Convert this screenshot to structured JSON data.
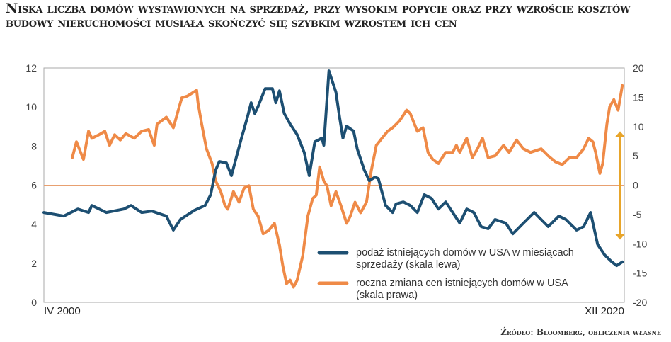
{
  "title": "Niska liczba domów wystawionych na sprzedaż, przy wysokim popycie oraz przy wzroście kosztów budowy nieruchomości musiała skończyć się szybkim wzrostem ich cen",
  "source": "Źródło: Bloomberg, obliczenia własne",
  "chart_data": {
    "type": "line",
    "title": "Niska liczba domów wystawionych na sprzedaż, przy wysokim popycie oraz przy wzroście kosztów budowy nieruchomości musiała skończyć się szybkim wzrostem ich cen",
    "x_range": [
      2000.25,
      2020.92
    ],
    "x_labels": [
      "IV 2000",
      "XII 2020"
    ],
    "left_axis": {
      "range": [
        0,
        12
      ],
      "ticks": [
        "0",
        "2",
        "4",
        "6",
        "8",
        "10",
        "12"
      ]
    },
    "right_axis": {
      "range": [
        -20,
        20
      ],
      "ticks": [
        "-20",
        "-15",
        "-10",
        "-5",
        "0",
        "5",
        "10",
        "15",
        "20"
      ]
    },
    "reference_line": {
      "left": 6,
      "right": 0
    },
    "annotation_arrow": {
      "axis": "right",
      "from": 9.2,
      "to": -9.3,
      "color": "#e8a52a"
    },
    "series": [
      {
        "name": "podaż istniejących domów w USA w miesiącach sprzedaży (skala lewa)",
        "legend_lines": [
          "podaż istniejących domów w USA w miesiącach",
          "sprzedaży (skala lewa)"
        ],
        "axis": "left",
        "color": "#1d4f72",
        "x": [
          2000.25,
          2000.96,
          2001.46,
          2001.84,
          2001.96,
          2002.47,
          2003.1,
          2003.35,
          2003.73,
          2004.1,
          2004.61,
          2004.86,
          2005.11,
          2005.61,
          2005.99,
          2006.19,
          2006.37,
          2006.5,
          2006.75,
          2006.93,
          2007.25,
          2007.5,
          2007.63,
          2007.76,
          2007.88,
          2008.13,
          2008.39,
          2008.51,
          2008.64,
          2008.81,
          2009.02,
          2009.27,
          2009.52,
          2009.7,
          2009.9,
          2010.15,
          2010.22,
          2010.4,
          2010.65,
          2010.78,
          2010.9,
          2011.03,
          2011.28,
          2011.41,
          2011.66,
          2011.84,
          2012.04,
          2012.16,
          2012.42,
          2012.67,
          2012.79,
          2013.05,
          2013.3,
          2013.55,
          2013.8,
          2014.05,
          2014.3,
          2014.56,
          2014.81,
          2015.06,
          2015.31,
          2015.56,
          2015.82,
          2016.07,
          2016.32,
          2016.7,
          2016.95,
          2017.33,
          2017.71,
          2017.96,
          2018.21,
          2018.59,
          2018.84,
          2019.22,
          2019.47,
          2019.72,
          2019.97,
          2020.22,
          2020.48,
          2020.65,
          2020.85
        ],
        "values": [
          4.6,
          4.42,
          4.78,
          4.6,
          4.96,
          4.6,
          4.78,
          4.96,
          4.6,
          4.67,
          4.42,
          3.7,
          4.24,
          4.71,
          4.96,
          5.51,
          6.78,
          7.21,
          7.14,
          6.49,
          8.22,
          9.49,
          10.22,
          9.67,
          10.04,
          10.94,
          10.94,
          10.22,
          10.83,
          9.67,
          9.13,
          8.59,
          7.68,
          6.49,
          8.22,
          8.41,
          8.04,
          11.85,
          10.76,
          9.49,
          8.41,
          9.02,
          8.77,
          7.86,
          6.78,
          6.23,
          6.41,
          6.34,
          4.96,
          4.6,
          5.04,
          5.14,
          4.96,
          4.6,
          5.51,
          5.33,
          4.78,
          5.14,
          4.6,
          4.06,
          4.78,
          4.6,
          3.88,
          3.77,
          4.24,
          4.06,
          3.51,
          4.06,
          4.6,
          4.24,
          3.88,
          4.42,
          4.24,
          3.7,
          3.88,
          4.6,
          2.97,
          2.43,
          2.07,
          1.88,
          2.07
        ]
      },
      {
        "name": "roczna zmiana cen istniejących domów w USA (skala prawa)",
        "legend_lines": [
          "roczna zmiana cen istniejących domów w USA",
          "(skala prawa)"
        ],
        "axis": "right",
        "color": "#ef8a47",
        "x": [
          2001.26,
          2001.41,
          2001.51,
          2001.66,
          2001.84,
          2001.96,
          2002.21,
          2002.42,
          2002.59,
          2002.77,
          2002.97,
          2003.17,
          2003.47,
          2003.73,
          2003.98,
          2004.18,
          2004.28,
          2004.61,
          2004.86,
          2005.16,
          2005.36,
          2005.69,
          2005.74,
          2005.87,
          2006.04,
          2006.24,
          2006.37,
          2006.55,
          2006.7,
          2006.8,
          2007.0,
          2007.2,
          2007.38,
          2007.55,
          2007.71,
          2007.88,
          2008.06,
          2008.26,
          2008.46,
          2008.64,
          2008.76,
          2008.89,
          2009.02,
          2009.14,
          2009.27,
          2009.47,
          2009.65,
          2009.82,
          2009.95,
          2010.07,
          2010.22,
          2010.33,
          2010.48,
          2010.65,
          2010.83,
          2011.03,
          2011.16,
          2011.33,
          2011.53,
          2011.74,
          2011.91,
          2012.09,
          2012.29,
          2012.49,
          2012.67,
          2012.92,
          2013.17,
          2013.3,
          2013.55,
          2013.75,
          2013.93,
          2014.1,
          2014.3,
          2014.56,
          2014.81,
          2014.94,
          2015.06,
          2015.31,
          2015.51,
          2015.69,
          2015.87,
          2016.07,
          2016.32,
          2016.62,
          2016.82,
          2017.08,
          2017.33,
          2017.58,
          2017.96,
          2018.21,
          2018.46,
          2018.71,
          2018.97,
          2019.22,
          2019.47,
          2019.65,
          2019.8,
          2019.9,
          2020.05,
          2020.15,
          2020.3,
          2020.4,
          2020.55,
          2020.7,
          2020.85
        ],
        "values": [
          4.7,
          7.4,
          6.2,
          4.4,
          9.2,
          8.0,
          8.6,
          9.2,
          6.8,
          8.6,
          7.7,
          8.8,
          8.0,
          9.2,
          9.5,
          6.8,
          10.4,
          11.6,
          9.8,
          14.9,
          15.2,
          16.2,
          14.0,
          10.4,
          6.2,
          3.7,
          0.7,
          -1.1,
          -3.5,
          -4.1,
          -1.1,
          -2.9,
          -0.5,
          -0.1,
          -4.1,
          -5.3,
          -8.3,
          -7.7,
          -6.5,
          -10.2,
          -13.8,
          -16.8,
          -16.2,
          -17.4,
          -16.2,
          -12.0,
          -5.3,
          -2.3,
          -1.7,
          3.1,
          0.7,
          -0.1,
          -3.5,
          -1.1,
          -3.5,
          -6.5,
          -5.3,
          -2.9,
          -4.7,
          -2.9,
          2.5,
          6.8,
          8.0,
          9.2,
          9.8,
          11.0,
          12.8,
          12.2,
          9.2,
          9.8,
          5.6,
          4.4,
          3.7,
          5.6,
          5.6,
          6.8,
          5.6,
          8.0,
          4.7,
          6.2,
          8.0,
          4.7,
          5.0,
          6.8,
          5.6,
          7.7,
          6.2,
          5.6,
          6.2,
          5.0,
          4.0,
          3.5,
          4.7,
          4.7,
          6.2,
          8.0,
          7.4,
          5.6,
          2.0,
          3.7,
          10.4,
          13.4,
          14.6,
          12.8,
          17.0
        ]
      }
    ]
  }
}
